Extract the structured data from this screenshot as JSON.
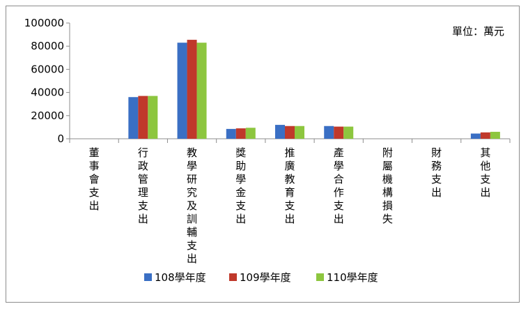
{
  "chart_data": {
    "type": "bar",
    "unit_label": "單位：萬元",
    "categories": [
      "董事會支出",
      "行政管理支出",
      "教學研究及訓輔支出",
      "獎助學金支出",
      "推廣教育支出",
      "產學合作支出",
      "附屬機構損失",
      "財務支出",
      "其他支出"
    ],
    "series": [
      {
        "name": "108學年度",
        "color": "#3a6fc4",
        "values": [
          0,
          36000,
          83000,
          8500,
          12000,
          11000,
          0,
          0,
          4500
        ]
      },
      {
        "name": "109學年度",
        "color": "#c0392b",
        "values": [
          0,
          37000,
          85500,
          9000,
          11000,
          10500,
          0,
          0,
          5500
        ]
      },
      {
        "name": "110學年度",
        "color": "#8dc63f",
        "values": [
          0,
          37000,
          83000,
          9500,
          11000,
          10500,
          0,
          0,
          6000
        ]
      }
    ],
    "yticks": [
      "0",
      "20000",
      "40000",
      "60000",
      "80000",
      "100000"
    ],
    "ylim": [
      0,
      100000
    ],
    "grid": false,
    "legend_position": "bottom"
  }
}
